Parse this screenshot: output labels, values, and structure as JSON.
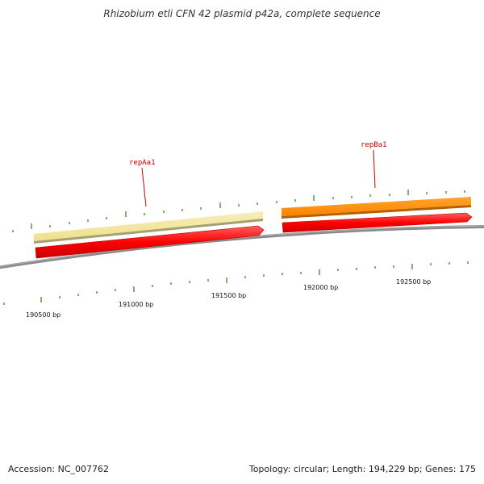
{
  "title": "Rhizobium etli CFN 42 plasmid p42a, complete sequence",
  "footer": {
    "accession": "Accession: NC_007762",
    "summary": "Topology: circular; Length: 194,229 bp; Genes: 175"
  },
  "colors": {
    "backbone": "#808080",
    "tick": "#2e7d1e",
    "cds": "#ff0000",
    "repAa1_feature": "#f2e59a",
    "repBa1_feature": "#ff8c00",
    "label": "#cc0000"
  },
  "genes": [
    {
      "name": "repAa1",
      "color": "#f2e59a"
    },
    {
      "name": "repBa1",
      "color": "#ff8c00"
    }
  ],
  "bp_labels": [
    "190500 bp",
    "191000 bp",
    "191500 bp",
    "192000 bp",
    "192500 bp"
  ]
}
